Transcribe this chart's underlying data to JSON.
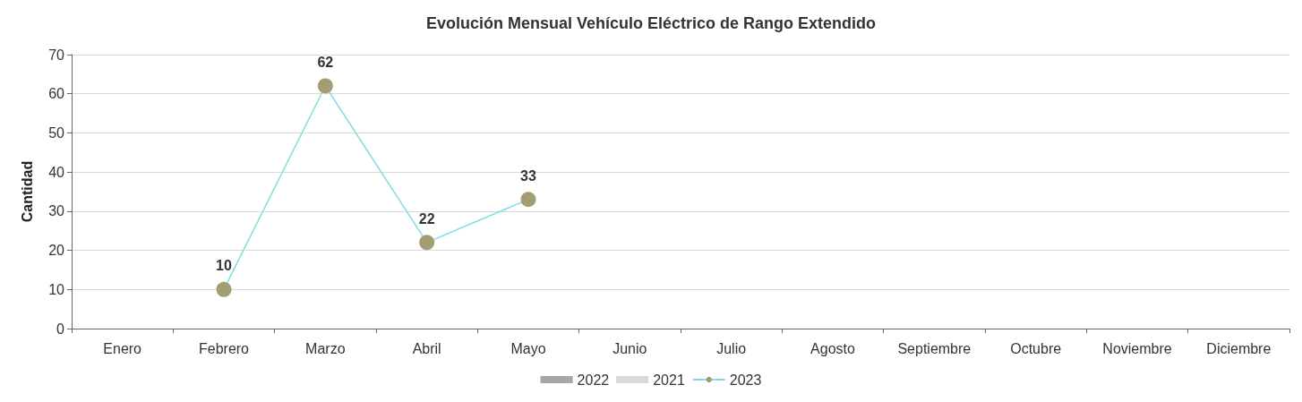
{
  "chart_data": {
    "type": "line",
    "title": "Evolución Mensual Vehículo Eléctrico de Rango Extendido",
    "ylabel": "Cantidad",
    "categories": [
      "Enero",
      "Febrero",
      "Marzo",
      "Abril",
      "Mayo",
      "Junio",
      "Julio",
      "Agosto",
      "Septiembre",
      "Octubre",
      "Noviembre",
      "Diciembre"
    ],
    "series": [
      {
        "name": "2022",
        "type": "bar",
        "color": "#a6a6a6",
        "values": [
          null,
          null,
          null,
          null,
          null,
          null,
          null,
          null,
          null,
          null,
          null,
          null
        ]
      },
      {
        "name": "2021",
        "type": "bar",
        "color": "#d9d9d9",
        "values": [
          null,
          null,
          null,
          null,
          null,
          null,
          null,
          null,
          null,
          null,
          null,
          null
        ]
      },
      {
        "name": "2023",
        "color": "#7fdfe3",
        "values": [
          null,
          10,
          62,
          22,
          33,
          null,
          null,
          null,
          null,
          null,
          null,
          null
        ]
      }
    ],
    "ylim": [
      0,
      70
    ],
    "yticks": [
      0,
      10,
      20,
      30,
      40,
      50,
      60,
      70
    ],
    "grid": "y",
    "legend": "bottom",
    "marker": "circle",
    "data_labels": true
  }
}
